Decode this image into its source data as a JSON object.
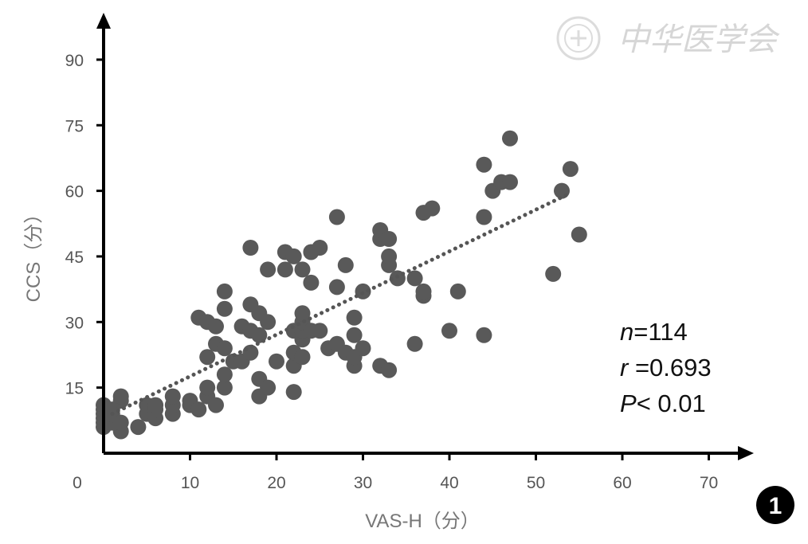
{
  "chart_data": {
    "type": "scatter",
    "xlabel": "VAS-H（分）",
    "ylabel": "CCS（分）",
    "xlim": [
      0,
      75
    ],
    "ylim": [
      0,
      97
    ],
    "xticks": [
      0,
      10,
      20,
      30,
      40,
      50,
      60,
      70
    ],
    "yticks": [
      15,
      30,
      45,
      60,
      75,
      90
    ],
    "grid": false,
    "annotations": {
      "n_label": "n",
      "n_value": "=114",
      "r_label": "r",
      "r_value": " =0.693",
      "p_label": "P",
      "p_value": "< 0.01"
    },
    "panel_label": "1",
    "watermark": "中华医学会",
    "trendline": {
      "style": "dotted",
      "x": [
        1,
        54
      ],
      "y": [
        9,
        59.5
      ]
    },
    "series": [
      {
        "points": [
          [
            0,
            6
          ],
          [
            0,
            7
          ],
          [
            0,
            8
          ],
          [
            0,
            9
          ],
          [
            0,
            10
          ],
          [
            0,
            11
          ],
          [
            1,
            7
          ],
          [
            1,
            9
          ],
          [
            1,
            10
          ],
          [
            2,
            5
          ],
          [
            2,
            7
          ],
          [
            2,
            12
          ],
          [
            2,
            13
          ],
          [
            4,
            6
          ],
          [
            5,
            9
          ],
          [
            5,
            11
          ],
          [
            6,
            8
          ],
          [
            6,
            10
          ],
          [
            6,
            11
          ],
          [
            8,
            9
          ],
          [
            8,
            11
          ],
          [
            8,
            13
          ],
          [
            10,
            11
          ],
          [
            10,
            12
          ],
          [
            11,
            10
          ],
          [
            11,
            31
          ],
          [
            12,
            13
          ],
          [
            12,
            15
          ],
          [
            12,
            22
          ],
          [
            12,
            30
          ],
          [
            13,
            11
          ],
          [
            13,
            25
          ],
          [
            13,
            29
          ],
          [
            14,
            15
          ],
          [
            14,
            18
          ],
          [
            14,
            24
          ],
          [
            14,
            33
          ],
          [
            14,
            37
          ],
          [
            15,
            21
          ],
          [
            16,
            21
          ],
          [
            16,
            29
          ],
          [
            17,
            23
          ],
          [
            17,
            28
          ],
          [
            17,
            34
          ],
          [
            17,
            47
          ],
          [
            18,
            13
          ],
          [
            18,
            17
          ],
          [
            18,
            27
          ],
          [
            18,
            32
          ],
          [
            19,
            15
          ],
          [
            19,
            30
          ],
          [
            19,
            42
          ],
          [
            20,
            21
          ],
          [
            21,
            42
          ],
          [
            21,
            46
          ],
          [
            22,
            14
          ],
          [
            22,
            20
          ],
          [
            22,
            23
          ],
          [
            22,
            28
          ],
          [
            22,
            45
          ],
          [
            23,
            22
          ],
          [
            23,
            26
          ],
          [
            23,
            28
          ],
          [
            23,
            30
          ],
          [
            23,
            32
          ],
          [
            23,
            42
          ],
          [
            24,
            28
          ],
          [
            24,
            39
          ],
          [
            24,
            46
          ],
          [
            25,
            28
          ],
          [
            25,
            47
          ],
          [
            26,
            24
          ],
          [
            27,
            25
          ],
          [
            27,
            38
          ],
          [
            27,
            54
          ],
          [
            28,
            23
          ],
          [
            28,
            43
          ],
          [
            29,
            20
          ],
          [
            29,
            22
          ],
          [
            29,
            27
          ],
          [
            29,
            31
          ],
          [
            30,
            24
          ],
          [
            30,
            37
          ],
          [
            32,
            20
          ],
          [
            32,
            49
          ],
          [
            32,
            51
          ],
          [
            33,
            19
          ],
          [
            33,
            43
          ],
          [
            33,
            45
          ],
          [
            33,
            49
          ],
          [
            34,
            40
          ],
          [
            36,
            25
          ],
          [
            36,
            40
          ],
          [
            37,
            36
          ],
          [
            37,
            37
          ],
          [
            37,
            55
          ],
          [
            38,
            56
          ],
          [
            40,
            28
          ],
          [
            41,
            37
          ],
          [
            44,
            27
          ],
          [
            44,
            54
          ],
          [
            44,
            66
          ],
          [
            45,
            60
          ],
          [
            46,
            62
          ],
          [
            47,
            62
          ],
          [
            47,
            72
          ],
          [
            52,
            41
          ],
          [
            53,
            60
          ],
          [
            54,
            65
          ],
          [
            55,
            50
          ]
        ]
      }
    ]
  }
}
